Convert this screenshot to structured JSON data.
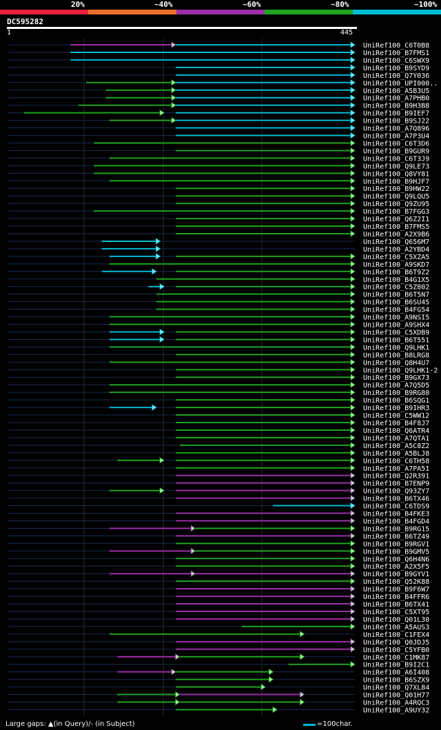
{
  "legend": [
    {
      "label": "20%",
      "color": "#e8203a"
    },
    {
      "label": "~40%",
      "color": "#e8702a"
    },
    {
      "label": "~60%",
      "color": "#9c2fa8"
    },
    {
      "label": "~80%",
      "color": "#1fa51f"
    },
    {
      "label": "~100%",
      "color": "#00bcd4"
    }
  ],
  "query": {
    "id": "DC595282",
    "start": "1",
    "end": "445"
  },
  "footer": {
    "large_gaps_text": "Large gaps: ▲(in Query)/- (in Subject)",
    "scale_text": "=100char."
  },
  "chart_data": {
    "type": "alignment",
    "query_length": 445,
    "hits": [
      {
        "name": "UniRef100_C6T0B8",
        "segments": [
          {
            "start": 80,
            "end": 215,
            "color": "#9c2fa8"
          },
          {
            "start": 215,
            "end": 445,
            "color": "#00bcd4"
          }
        ]
      },
      {
        "name": "UniRef100_B7FMS1",
        "segments": [
          {
            "start": 80,
            "end": 445,
            "color": "#00bcd4"
          }
        ]
      },
      {
        "name": "UniRef100_C6SWX9",
        "segments": [
          {
            "start": 80,
            "end": 445,
            "color": "#00bcd4"
          }
        ]
      },
      {
        "name": "UniRef100_B9SYD9",
        "segments": [
          {
            "start": 215,
            "end": 445,
            "color": "#00bcd4"
          }
        ]
      },
      {
        "name": "UniRef100_Q7Y036",
        "segments": [
          {
            "start": 215,
            "end": 445,
            "color": "#00bcd4"
          }
        ]
      },
      {
        "name": "UniRef100_UPI000..",
        "segments": [
          {
            "start": 100,
            "end": 215,
            "color": "#1fa51f"
          },
          {
            "start": 215,
            "end": 445,
            "color": "#00bcd4"
          }
        ]
      },
      {
        "name": "UniRef100_A5B3U5",
        "segments": [
          {
            "start": 125,
            "end": 215,
            "color": "#1fa51f"
          },
          {
            "start": 215,
            "end": 445,
            "color": "#00bcd4"
          }
        ]
      },
      {
        "name": "UniRef100_A7PHB0",
        "segments": [
          {
            "start": 125,
            "end": 215,
            "color": "#1fa51f"
          },
          {
            "start": 215,
            "end": 445,
            "color": "#00bcd4"
          }
        ]
      },
      {
        "name": "UniRef100_B9H3B8",
        "segments": [
          {
            "start": 90,
            "end": 215,
            "color": "#1fa51f"
          },
          {
            "start": 215,
            "end": 445,
            "color": "#00bcd4"
          }
        ]
      },
      {
        "name": "UniRef100_B9IEF7",
        "segments": [
          {
            "start": 20,
            "end": 200,
            "color": "#1fa51f"
          },
          {
            "start": 215,
            "end": 445,
            "color": "#00bcd4"
          }
        ]
      },
      {
        "name": "UniRef100_B9SJ22",
        "segments": [
          {
            "start": 130,
            "end": 215,
            "color": "#1fa51f"
          },
          {
            "start": 215,
            "end": 445,
            "color": "#00bcd4"
          }
        ]
      },
      {
        "name": "UniRef100_A7Q896",
        "segments": [
          {
            "start": 215,
            "end": 445,
            "color": "#00bcd4"
          }
        ]
      },
      {
        "name": "UniRef100_A7P3U4",
        "segments": [
          {
            "start": 215,
            "end": 445,
            "color": "#00bcd4"
          }
        ]
      },
      {
        "name": "UniRef100_C6T3D6",
        "segments": [
          {
            "start": 110,
            "end": 445,
            "color": "#1fa51f"
          }
        ]
      },
      {
        "name": "UniRef100_B9GUR9",
        "segments": [
          {
            "start": 215,
            "end": 445,
            "color": "#1fa51f"
          }
        ]
      },
      {
        "name": "UniRef100_C6T3J9",
        "segments": [
          {
            "start": 130,
            "end": 445,
            "color": "#1fa51f"
          }
        ]
      },
      {
        "name": "UniRef100_Q9LE73",
        "segments": [
          {
            "start": 110,
            "end": 445,
            "color": "#1fa51f"
          }
        ]
      },
      {
        "name": "UniRef100_Q8VY81",
        "segments": [
          {
            "start": 110,
            "end": 445,
            "color": "#1fa51f"
          }
        ]
      },
      {
        "name": "UniRef100_B9HJF7",
        "segments": [
          {
            "start": 130,
            "end": 445,
            "color": "#1fa51f"
          }
        ]
      },
      {
        "name": "UniRef100_B9HW22",
        "segments": [
          {
            "start": 215,
            "end": 445,
            "color": "#1fa51f"
          }
        ]
      },
      {
        "name": "UniRef100_Q9LQU5",
        "segments": [
          {
            "start": 215,
            "end": 445,
            "color": "#1fa51f"
          }
        ]
      },
      {
        "name": "UniRef100_Q9ZU95",
        "segments": [
          {
            "start": 215,
            "end": 445,
            "color": "#1fa51f"
          }
        ]
      },
      {
        "name": "UniRef100_B7FGG3",
        "segments": [
          {
            "start": 110,
            "end": 445,
            "color": "#1fa51f"
          }
        ]
      },
      {
        "name": "UniRef100_Q6Z2I1",
        "segments": [
          {
            "start": 215,
            "end": 445,
            "color": "#1fa51f"
          }
        ]
      },
      {
        "name": "UniRef100_B7FMS5",
        "segments": [
          {
            "start": 215,
            "end": 445,
            "color": "#1fa51f"
          }
        ]
      },
      {
        "name": "UniRef100_A2X9B6",
        "segments": [
          {
            "start": 215,
            "end": 445,
            "color": "#1fa51f"
          }
        ]
      },
      {
        "name": "UniRef100_Q656M7",
        "segments": [
          {
            "start": 120,
            "end": 195,
            "color": "#00bcd4"
          }
        ]
      },
      {
        "name": "UniRef100_A2YBD4",
        "segments": [
          {
            "start": 120,
            "end": 195,
            "color": "#00bcd4"
          }
        ]
      },
      {
        "name": "UniRef100_C5XZA5",
        "segments": [
          {
            "start": 130,
            "end": 195,
            "color": "#00bcd4"
          },
          {
            "start": 215,
            "end": 445,
            "color": "#1fa51f"
          }
        ]
      },
      {
        "name": "UniRef100_A9SKD7",
        "segments": [
          {
            "start": 130,
            "end": 445,
            "color": "#1fa51f"
          }
        ]
      },
      {
        "name": "UniRef100_B6T9Z2",
        "segments": [
          {
            "start": 120,
            "end": 190,
            "color": "#00bcd4"
          },
          {
            "start": 215,
            "end": 445,
            "color": "#1fa51f"
          }
        ]
      },
      {
        "name": "UniRef100_B4G1X5",
        "segments": [
          {
            "start": 190,
            "end": 445,
            "color": "#1fa51f"
          }
        ]
      },
      {
        "name": "UniRef100_C5Z802",
        "segments": [
          {
            "start": 180,
            "end": 200,
            "color": "#00bcd4"
          },
          {
            "start": 215,
            "end": 445,
            "color": "#1fa51f"
          }
        ]
      },
      {
        "name": "UniRef100_B6T5N7",
        "segments": [
          {
            "start": 190,
            "end": 445,
            "color": "#1fa51f"
          }
        ]
      },
      {
        "name": "UniRef100_B6SU45",
        "segments": [
          {
            "start": 190,
            "end": 445,
            "color": "#1fa51f"
          }
        ]
      },
      {
        "name": "UniRef100_B4FG54",
        "segments": [
          {
            "start": 190,
            "end": 445,
            "color": "#1fa51f"
          }
        ]
      },
      {
        "name": "UniRef100_A9NSI5",
        "segments": [
          {
            "start": 130,
            "end": 445,
            "color": "#1fa51f"
          }
        ]
      },
      {
        "name": "UniRef100_A9SHX4",
        "segments": [
          {
            "start": 130,
            "end": 445,
            "color": "#1fa51f"
          }
        ]
      },
      {
        "name": "UniRef100_C5XDB9",
        "segments": [
          {
            "start": 130,
            "end": 200,
            "color": "#00bcd4"
          },
          {
            "start": 215,
            "end": 445,
            "color": "#1fa51f"
          }
        ]
      },
      {
        "name": "UniRef100_B6T551",
        "segments": [
          {
            "start": 130,
            "end": 200,
            "color": "#00bcd4"
          },
          {
            "start": 215,
            "end": 445,
            "color": "#1fa51f"
          }
        ]
      },
      {
        "name": "UniRef100_Q9LHK1",
        "segments": [
          {
            "start": 130,
            "end": 445,
            "color": "#1fa51f"
          }
        ]
      },
      {
        "name": "UniRef100_B8LRG8",
        "segments": [
          {
            "start": 215,
            "end": 445,
            "color": "#1fa51f"
          }
        ]
      },
      {
        "name": "UniRef100_Q8H4U7",
        "segments": [
          {
            "start": 130,
            "end": 445,
            "color": "#1fa51f"
          }
        ]
      },
      {
        "name": "UniRef100_Q9LHK1-2",
        "segments": [
          {
            "start": 215,
            "end": 445,
            "color": "#1fa51f"
          }
        ]
      },
      {
        "name": "UniRef100_B9GX73",
        "segments": [
          {
            "start": 215,
            "end": 445,
            "color": "#1fa51f"
          }
        ]
      },
      {
        "name": "UniRef100_A7Q5D5",
        "segments": [
          {
            "start": 130,
            "end": 445,
            "color": "#1fa51f"
          }
        ]
      },
      {
        "name": "UniRef100_B9RG80",
        "segments": [
          {
            "start": 130,
            "end": 445,
            "color": "#1fa51f"
          }
        ]
      },
      {
        "name": "UniRef100_B6SQG1",
        "segments": [
          {
            "start": 215,
            "end": 445,
            "color": "#1fa51f"
          }
        ]
      },
      {
        "name": "UniRef100_B9IHR3",
        "segments": [
          {
            "start": 130,
            "end": 190,
            "color": "#00bcd4"
          },
          {
            "start": 215,
            "end": 445,
            "color": "#1fa51f"
          }
        ]
      },
      {
        "name": "UniRef100_C5WW12",
        "segments": [
          {
            "start": 215,
            "end": 445,
            "color": "#1fa51f"
          }
        ]
      },
      {
        "name": "UniRef100_B4F8J7",
        "segments": [
          {
            "start": 215,
            "end": 445,
            "color": "#1fa51f"
          }
        ]
      },
      {
        "name": "UniRef100_Q6ATR4",
        "segments": [
          {
            "start": 215,
            "end": 445,
            "color": "#1fa51f"
          }
        ]
      },
      {
        "name": "UniRef100_A7QTA1",
        "segments": [
          {
            "start": 215,
            "end": 445,
            "color": "#1fa51f"
          }
        ]
      },
      {
        "name": "UniRef100_A5C8Z2",
        "segments": [
          {
            "start": 220,
            "end": 445,
            "color": "#1fa51f"
          }
        ]
      },
      {
        "name": "UniRef100_A5BLJ8",
        "segments": [
          {
            "start": 215,
            "end": 445,
            "color": "#1fa51f"
          }
        ]
      },
      {
        "name": "UniRef100_C6TH58",
        "segments": [
          {
            "start": 140,
            "end": 200,
            "color": "#1fa51f"
          },
          {
            "start": 215,
            "end": 445,
            "color": "#1fa51f"
          }
        ]
      },
      {
        "name": "UniRef100_A7PA51",
        "segments": [
          {
            "start": 215,
            "end": 445,
            "color": "#1fa51f"
          }
        ]
      },
      {
        "name": "UniRef100_Q2R391",
        "segments": [
          {
            "start": 215,
            "end": 445,
            "color": "#9c2fa8"
          }
        ]
      },
      {
        "name": "UniRef100_B7ENP9",
        "segments": [
          {
            "start": 215,
            "end": 445,
            "color": "#9c2fa8"
          }
        ]
      },
      {
        "name": "UniRef100_Q93ZY7",
        "segments": [
          {
            "start": 130,
            "end": 200,
            "color": "#1fa51f"
          },
          {
            "start": 215,
            "end": 445,
            "color": "#9c2fa8"
          }
        ]
      },
      {
        "name": "UniRef100_B6TX46",
        "segments": [
          {
            "start": 215,
            "end": 445,
            "color": "#9c2fa8"
          }
        ]
      },
      {
        "name": "UniRef100_C6TDS9",
        "segments": [
          {
            "start": 340,
            "end": 445,
            "color": "#00bcd4"
          }
        ]
      },
      {
        "name": "UniRef100_B4FKE3",
        "segments": [
          {
            "start": 215,
            "end": 445,
            "color": "#9c2fa8"
          }
        ]
      },
      {
        "name": "UniRef100_B4FGD4",
        "segments": [
          {
            "start": 215,
            "end": 445,
            "color": "#9c2fa8"
          }
        ]
      },
      {
        "name": "UniRef100_B9RG15",
        "segments": [
          {
            "start": 130,
            "end": 240,
            "color": "#9c2fa8"
          },
          {
            "start": 240,
            "end": 445,
            "color": "#1fa51f"
          }
        ]
      },
      {
        "name": "UniRef100_B6TZ49",
        "segments": [
          {
            "start": 215,
            "end": 445,
            "color": "#9c2fa8"
          }
        ]
      },
      {
        "name": "UniRef100_B9RGV1",
        "segments": [
          {
            "start": 215,
            "end": 445,
            "color": "#1fa51f"
          }
        ]
      },
      {
        "name": "UniRef100_B9GMV5",
        "segments": [
          {
            "start": 130,
            "end": 240,
            "color": "#9c2fa8"
          },
          {
            "start": 240,
            "end": 445,
            "color": "#1fa51f"
          }
        ]
      },
      {
        "name": "UniRef100_Q6H4N6",
        "segments": [
          {
            "start": 215,
            "end": 445,
            "color": "#1fa51f"
          }
        ]
      },
      {
        "name": "UniRef100_A2X5F5",
        "segments": [
          {
            "start": 215,
            "end": 445,
            "color": "#1fa51f"
          }
        ]
      },
      {
        "name": "UniRef100_B9GYV1",
        "segments": [
          {
            "start": 130,
            "end": 240,
            "color": "#9c2fa8"
          },
          {
            "start": 240,
            "end": 445,
            "color": "#9c2fa8"
          }
        ]
      },
      {
        "name": "UniRef100_Q52K88",
        "segments": [
          {
            "start": 215,
            "end": 445,
            "color": "#1fa51f"
          }
        ]
      },
      {
        "name": "UniRef100_B9F6W7",
        "segments": [
          {
            "start": 215,
            "end": 445,
            "color": "#9c2fa8"
          }
        ]
      },
      {
        "name": "UniRef100_B4FFR6",
        "segments": [
          {
            "start": 215,
            "end": 445,
            "color": "#9c2fa8"
          }
        ]
      },
      {
        "name": "UniRef100_B6TX41",
        "segments": [
          {
            "start": 215,
            "end": 445,
            "color": "#9c2fa8"
          }
        ]
      },
      {
        "name": "UniRef100_C5XT95",
        "segments": [
          {
            "start": 215,
            "end": 445,
            "color": "#9c2fa8"
          }
        ]
      },
      {
        "name": "UniRef100_Q01L30",
        "segments": [
          {
            "start": 215,
            "end": 445,
            "color": "#9c2fa8"
          }
        ]
      },
      {
        "name": "UniRef100_A5AUS3",
        "segments": [
          {
            "start": 300,
            "end": 445,
            "color": "#1fa51f"
          }
        ]
      },
      {
        "name": "UniRef100_C1FEX4",
        "segments": [
          {
            "start": 130,
            "end": 380,
            "color": "#1fa51f"
          }
        ]
      },
      {
        "name": "UniRef100_Q0JDJ5",
        "segments": [
          {
            "start": 215,
            "end": 445,
            "color": "#9c2fa8"
          }
        ]
      },
      {
        "name": "UniRef100_C5YFB0",
        "segments": [
          {
            "start": 215,
            "end": 445,
            "color": "#9c2fa8"
          }
        ]
      },
      {
        "name": "UniRef100_C1MK87",
        "segments": [
          {
            "start": 140,
            "end": 220,
            "color": "#9c2fa8"
          },
          {
            "start": 220,
            "end": 380,
            "color": "#1fa51f"
          }
        ]
      },
      {
        "name": "UniRef100_B9I2C1",
        "segments": [
          {
            "start": 360,
            "end": 445,
            "color": "#1fa51f"
          }
        ]
      },
      {
        "name": "UniRef100_A6I408",
        "segments": [
          {
            "start": 140,
            "end": 215,
            "color": "#9c2fa8"
          },
          {
            "start": 215,
            "end": 340,
            "color": "#1fa51f"
          }
        ]
      },
      {
        "name": "UniRef100_B6SZX9",
        "segments": [
          {
            "start": 215,
            "end": 340,
            "color": "#1fa51f"
          }
        ]
      },
      {
        "name": "UniRef100_Q7XL84",
        "segments": [
          {
            "start": 215,
            "end": 330,
            "color": "#1fa51f"
          }
        ]
      },
      {
        "name": "UniRef100_Q01H77",
        "segments": [
          {
            "start": 140,
            "end": 220,
            "color": "#1fa51f"
          },
          {
            "start": 220,
            "end": 380,
            "color": "#9c2fa8"
          }
        ]
      },
      {
        "name": "UniRef100_A4RQC3",
        "segments": [
          {
            "start": 140,
            "end": 220,
            "color": "#1fa51f"
          },
          {
            "start": 220,
            "end": 380,
            "color": "#1fa51f"
          }
        ]
      },
      {
        "name": "UniRef100_A9UY32",
        "segments": [
          {
            "start": 215,
            "end": 345,
            "color": "#1fa51f"
          }
        ]
      }
    ]
  }
}
